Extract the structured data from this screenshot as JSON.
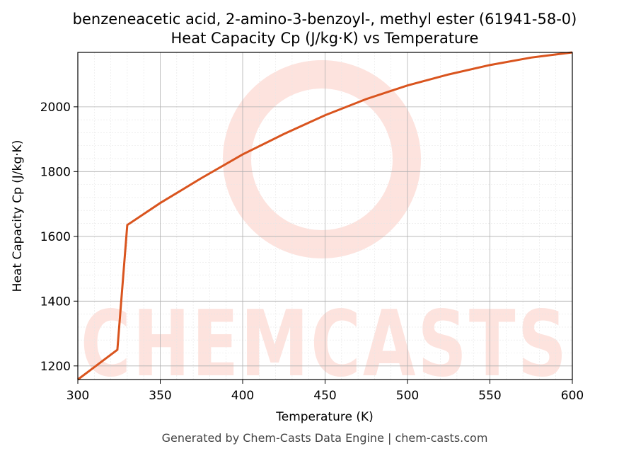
{
  "chart_data": {
    "type": "line",
    "title": "benzeneacetic acid, 2-amino-3-benzoyl-, methyl ester (61941-58-0)",
    "subtitle": "Heat Capacity Cp (J/kg·K) vs Temperature",
    "x_label": "Temperature (K)",
    "y_label": "Heat Capacity Cp (J/kg·K)",
    "watermark": "CHEMCASTS",
    "footer": "Generated by Chem-Casts Data Engine | chem-casts.com",
    "x": [
      300,
      324,
      330,
      350,
      375,
      400,
      425,
      450,
      475,
      500,
      525,
      550,
      575,
      600
    ],
    "series": [
      {
        "color": "#d9541e",
        "values": [
          1158,
          1250,
          1635,
          1703,
          1780,
          1853,
          1916,
          1974,
          2024,
          2066,
          2100,
          2129,
          2152,
          2168
        ]
      }
    ],
    "xlim": [
      300,
      600
    ],
    "xticks": [
      300,
      350,
      400,
      450,
      500,
      550,
      600
    ],
    "ylim": [
      1158,
      2168
    ],
    "yticks": [
      1200,
      1400,
      1600,
      1800,
      2000
    ],
    "grid": true,
    "minor_grid": true
  }
}
